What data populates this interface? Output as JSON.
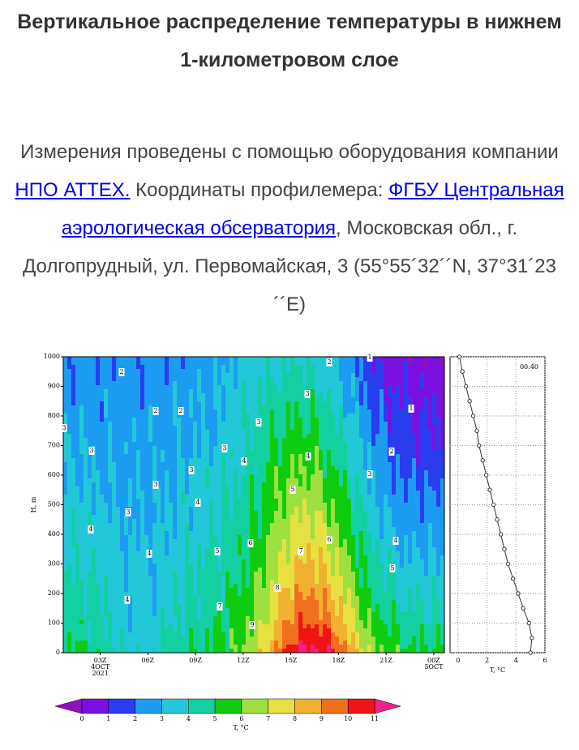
{
  "header": {
    "title": "Вертикальное распределение температуры в нижнем 1-километровом слое"
  },
  "intro": {
    "text_1": "Измерения проведены с помощью оборудования компании ",
    "link_1": "НПО АТТЕХ.",
    "text_2": " Координаты профилемера: ",
    "link_2": "ФГБУ Центральная аэрологическая обсерватория",
    "text_3": ", Московская обл., г. Долгопрудный, ул. Первомайская, 3 (55°55´32´´N, 37°31´23´´E)"
  },
  "chart_data": [
    {
      "type": "contour",
      "ylabel": "H, m",
      "xlim": [
        0.67,
        24.67
      ],
      "ylim": [
        0,
        1000
      ],
      "xticks": [
        {
          "value": 3,
          "label": "03Z"
        },
        {
          "value": 6,
          "label": "06Z"
        },
        {
          "value": 9,
          "label": "09Z"
        },
        {
          "value": 12,
          "label": "12Z"
        },
        {
          "value": 15,
          "label": "15Z"
        },
        {
          "value": 18,
          "label": "18Z"
        },
        {
          "value": 21,
          "label": "21Z"
        },
        {
          "value": 24,
          "label": "00Z"
        }
      ],
      "date_labels": [
        "4OCT",
        "2021",
        "5OCT"
      ],
      "yticks": [
        0,
        100,
        200,
        300,
        400,
        500,
        600,
        700,
        800,
        900,
        1000
      ],
      "contour_labels": [
        2,
        2,
        2,
        2,
        1,
        1,
        2,
        3,
        3,
        3,
        3,
        3,
        3,
        3,
        3,
        3,
        4,
        4,
        4,
        4,
        4,
        4,
        4,
        5,
        5,
        5,
        6,
        6,
        7,
        7,
        8,
        9
      ]
    },
    {
      "type": "line",
      "title": "00:40",
      "xlabel": "T, °C",
      "xlim": [
        -0.55,
        6
      ],
      "ylim": [
        0,
        1000
      ],
      "xticks": [
        0,
        2,
        4,
        6
      ],
      "grid": true,
      "color": "#333333",
      "x": [
        5.0,
        5.1,
        4.9,
        4.5,
        4.15,
        3.8,
        3.45,
        3.2,
        2.95,
        2.7,
        2.45,
        2.2,
        1.95,
        1.7,
        1.45,
        1.3,
        1.05,
        0.8,
        0.55,
        0.3,
        0.1
      ],
      "y": [
        0,
        50,
        100,
        150,
        200,
        250,
        300,
        350,
        400,
        450,
        500,
        550,
        600,
        650,
        700,
        750,
        800,
        850,
        900,
        950,
        1000
      ]
    },
    {
      "type": "colorbar",
      "label": "T, °C",
      "ticks": [
        0,
        1,
        2,
        3,
        4,
        5,
        6,
        7,
        8,
        9,
        10,
        11
      ],
      "colors": [
        "#7a10e0",
        "#2a3cf0",
        "#1c9cf0",
        "#22c8d8",
        "#12d0a0",
        "#10cc10",
        "#9ee040",
        "#e6e040",
        "#f0b030",
        "#f07020",
        "#f01414"
      ],
      "under_color": "#9010c0",
      "over_color": "#f0208a"
    }
  ]
}
